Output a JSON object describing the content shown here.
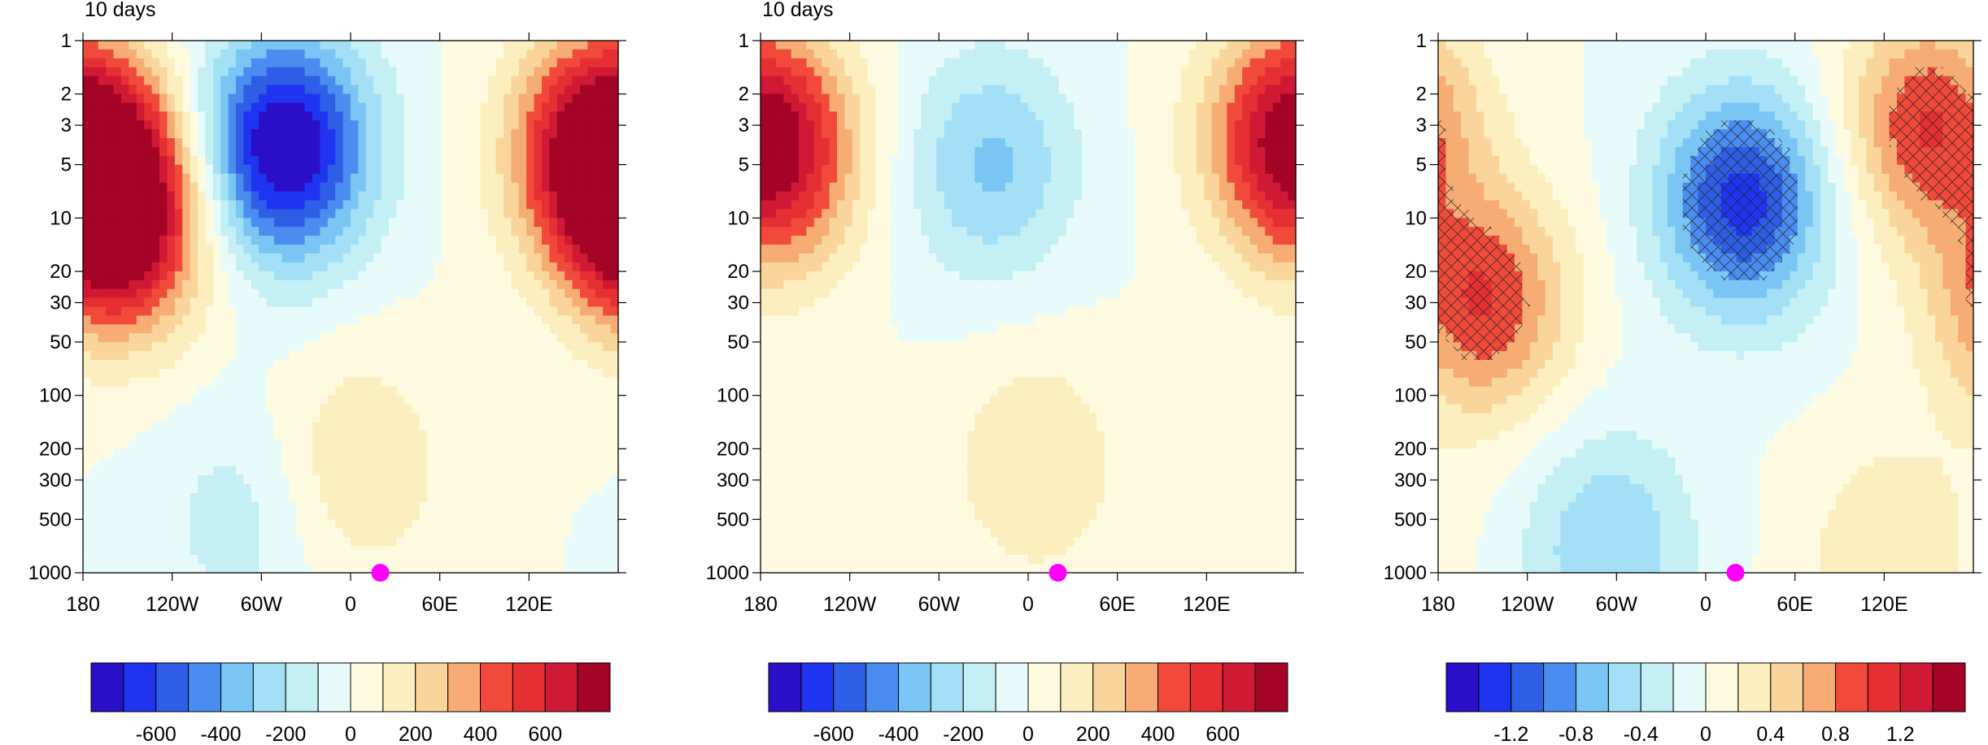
{
  "chart_data": [
    {
      "type": "heatmap",
      "title": "10 days",
      "x_ticks": [
        {
          "value": -180,
          "label": "180"
        },
        {
          "value": -120,
          "label": "120W"
        },
        {
          "value": -60,
          "label": "60W"
        },
        {
          "value": 0,
          "label": "0"
        },
        {
          "value": 60,
          "label": "60E"
        },
        {
          "value": 120,
          "label": "120E"
        }
      ],
      "xlim": [
        -180,
        180
      ],
      "y_ticks": [
        1,
        2,
        3,
        5,
        10,
        20,
        30,
        50,
        100,
        200,
        300,
        500,
        1000
      ],
      "ylim": [
        1000,
        1
      ],
      "y_scale": "log",
      "y_reversed": true,
      "colorbar_levels": [
        -700,
        -600,
        -500,
        -400,
        -300,
        -200,
        -100,
        0,
        100,
        200,
        300,
        400,
        500,
        600,
        700
      ],
      "colorbar_labels": [
        "-600",
        "-400",
        "-200",
        "0",
        "200",
        "400",
        "600"
      ],
      "colorbar_label_values": [
        -600,
        -400,
        -200,
        0,
        200,
        400,
        600
      ],
      "marker": {
        "lon": 20,
        "pressure": 1000,
        "color": "#ff00ff"
      },
      "centers": [
        {
          "lon": -155,
          "p": 10,
          "value": 850
        },
        {
          "lon": -45,
          "p": 4,
          "value": -850
        },
        {
          "lon": 170,
          "p": 4,
          "value": 850
        },
        {
          "lon": 5,
          "p": 250,
          "value": 200
        },
        {
          "lon": -75,
          "p": 500,
          "value": -150
        }
      ]
    },
    {
      "type": "heatmap",
      "title": "10 days",
      "x_ticks": [
        {
          "value": -180,
          "label": "180"
        },
        {
          "value": -120,
          "label": "120W"
        },
        {
          "value": -60,
          "label": "60W"
        },
        {
          "value": 0,
          "label": "0"
        },
        {
          "value": 60,
          "label": "60E"
        },
        {
          "value": 120,
          "label": "120E"
        }
      ],
      "xlim": [
        -180,
        180
      ],
      "y_ticks": [
        1,
        2,
        3,
        5,
        10,
        20,
        30,
        50,
        100,
        200,
        300,
        500,
        1000
      ],
      "ylim": [
        1000,
        1
      ],
      "y_scale": "log",
      "y_reversed": true,
      "colorbar_levels": [
        -700,
        -600,
        -500,
        -400,
        -300,
        -200,
        -100,
        0,
        100,
        200,
        300,
        400,
        500,
        600,
        700
      ],
      "colorbar_labels": [
        "-600",
        "-400",
        "-200",
        "0",
        "200",
        "400",
        "600"
      ],
      "colorbar_label_values": [
        -600,
        -400,
        -200,
        0,
        200,
        400,
        600
      ],
      "marker": {
        "lon": 20,
        "pressure": 1000,
        "color": "#ff00ff"
      },
      "centers": [
        {
          "lon": -170,
          "p": 5,
          "value": 450
        },
        {
          "lon": -25,
          "p": 5,
          "value": -320
        },
        {
          "lon": 175,
          "p": 3,
          "value": 450
        },
        {
          "lon": 5,
          "p": 250,
          "value": 200
        }
      ]
    },
    {
      "type": "heatmap",
      "x_ticks": [
        {
          "value": -180,
          "label": "180"
        },
        {
          "value": -120,
          "label": "120W"
        },
        {
          "value": -60,
          "label": "60W"
        },
        {
          "value": 0,
          "label": "0"
        },
        {
          "value": 60,
          "label": "60E"
        },
        {
          "value": 120,
          "label": "120E"
        }
      ],
      "xlim": [
        -180,
        180
      ],
      "y_ticks": [
        1,
        2,
        3,
        5,
        10,
        20,
        30,
        50,
        100,
        200,
        300,
        500,
        1000
      ],
      "ylim": [
        1000,
        1
      ],
      "y_scale": "log",
      "y_reversed": true,
      "hatched": "significant regions",
      "colorbar_levels": [
        -1.4,
        -1.2,
        -1.0,
        -0.8,
        -0.6,
        -0.4,
        -0.2,
        0,
        0.2,
        0.4,
        0.6,
        0.8,
        1.0,
        1.2,
        1.4
      ],
      "colorbar_labels": [
        "-1.2",
        "-0.8",
        "-0.4",
        "0",
        "0.4",
        "0.8",
        "1.2"
      ],
      "colorbar_label_values": [
        -1.2,
        -0.8,
        -0.4,
        0,
        0.4,
        0.8,
        1.2
      ],
      "marker": {
        "lon": 20,
        "pressure": 1000,
        "color": "#ff00ff"
      },
      "centers": [
        {
          "lon": -150,
          "p": 30,
          "value": 1.0
        },
        {
          "lon": 25,
          "p": 8,
          "value": -1.3
        },
        {
          "lon": 150,
          "p": 3,
          "value": 1.0
        },
        {
          "lon": -65,
          "p": 700,
          "value": -0.6
        },
        {
          "lon": 125,
          "p": 800,
          "value": 0.4
        }
      ]
    }
  ],
  "colors": {
    "palette": [
      "#2a0fc9",
      "#1f34f0",
      "#2e5ee6",
      "#4a8df0",
      "#79c6f5",
      "#a3e0f5",
      "#c4f0f5",
      "#e8fbfb",
      "#fefadf",
      "#fceebe",
      "#f9d59b",
      "#f6ac73",
      "#f14a3b",
      "#e62f33",
      "#d01935",
      "#a40425"
    ],
    "marker": "#ff00ff"
  }
}
